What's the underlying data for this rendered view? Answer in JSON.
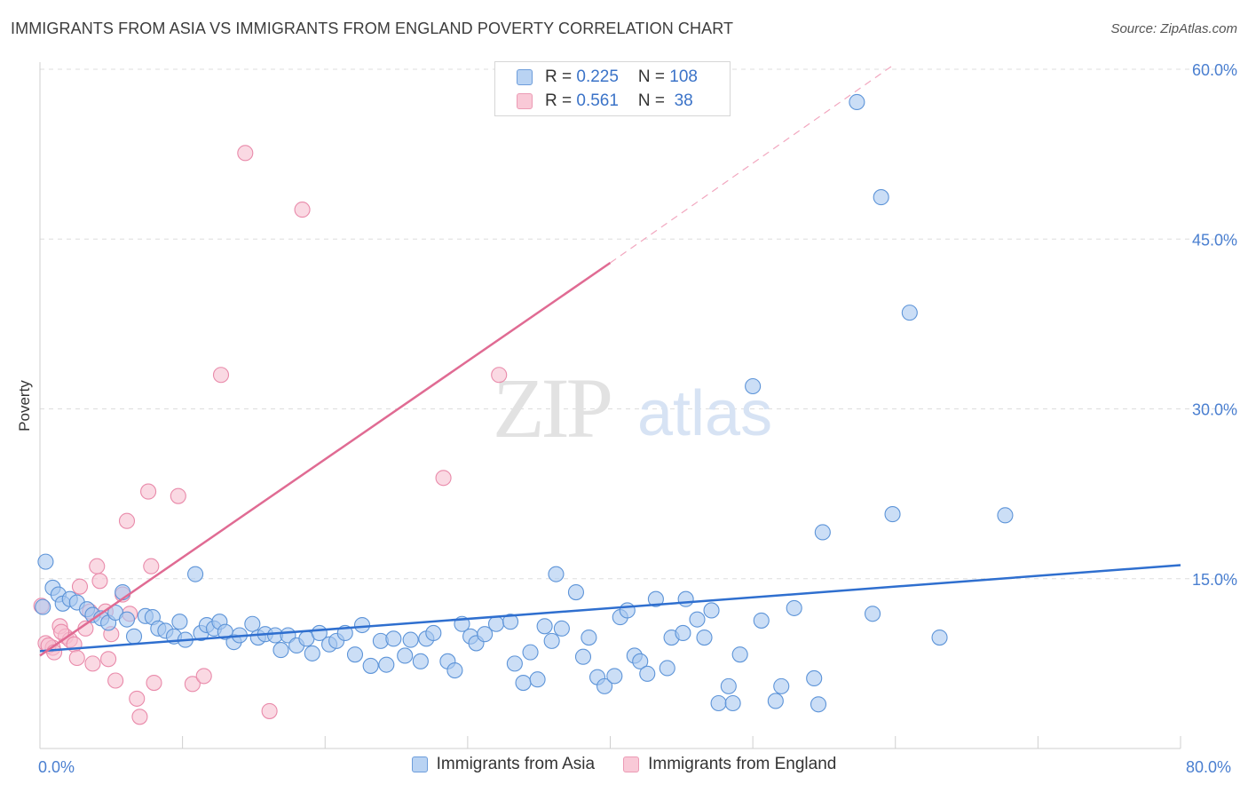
{
  "header": {
    "title": "IMMIGRANTS FROM ASIA VS IMMIGRANTS FROM ENGLAND POVERTY CORRELATION CHART",
    "source": "Source: ZipAtlas.com"
  },
  "watermark": {
    "zip": "ZIP",
    "atlas": "atlas"
  },
  "legend": {
    "asia": {
      "r_label": "R = ",
      "r_value": "0.225",
      "n_label": "N = ",
      "n_value": "108",
      "color": "#a9c8f0"
    },
    "england": {
      "r_label": "R = ",
      "r_value": "0.561",
      "n_label": "N = ",
      "n_value": " 38",
      "color": "#f5b8cc"
    }
  },
  "bottom_legend": {
    "asia": "Immigrants from Asia",
    "england": "Immigrants from England"
  },
  "colors": {
    "asia_fill": "#a9c8f0",
    "asia_stroke": "#5d94d8",
    "asia_line": "#2f6fcf",
    "england_fill": "#f7bfd0",
    "england_stroke": "#e98aaa",
    "england_line": "#e06b93",
    "grid": "#dddddd",
    "tick_text": "#4a7fd0"
  },
  "chart_data": {
    "type": "scatter",
    "title": "IMMIGRANTS FROM ASIA VS IMMIGRANTS FROM ENGLAND POVERTY CORRELATION CHART",
    "xlabel": "",
    "ylabel": "Poverty",
    "xlim": [
      0,
      80
    ],
    "ylim": [
      0,
      60
    ],
    "x_ticks": [
      "0.0%",
      "80.0%"
    ],
    "y_ticks": [
      {
        "value": 15,
        "label": "15.0%"
      },
      {
        "value": 30,
        "label": "30.0%"
      },
      {
        "value": 45,
        "label": "45.0%"
      },
      {
        "value": 60,
        "label": "60.0%"
      }
    ],
    "series": [
      {
        "name": "Immigrants from Asia",
        "R": 0.225,
        "N": 108,
        "trend": {
          "x": [
            0,
            80
          ],
          "y": [
            8.6,
            16.2
          ],
          "dashed": false
        },
        "points": [
          [
            0.4,
            16.5
          ],
          [
            0.9,
            14.2
          ],
          [
            1.3,
            13.6
          ],
          [
            1.6,
            12.8
          ],
          [
            2.1,
            13.2
          ],
          [
            2.6,
            12.9
          ],
          [
            3.3,
            12.3
          ],
          [
            3.7,
            11.8
          ],
          [
            4.3,
            11.5
          ],
          [
            4.8,
            11.1
          ],
          [
            5.3,
            12.0
          ],
          [
            5.8,
            13.8
          ],
          [
            6.1,
            11.4
          ],
          [
            6.6,
            9.9
          ],
          [
            7.4,
            11.7
          ],
          [
            7.9,
            11.6
          ],
          [
            8.3,
            10.6
          ],
          [
            8.8,
            10.4
          ],
          [
            9.4,
            9.9
          ],
          [
            9.8,
            11.2
          ],
          [
            10.2,
            9.6
          ],
          [
            10.9,
            15.4
          ],
          [
            11.3,
            10.2
          ],
          [
            11.7,
            10.9
          ],
          [
            12.2,
            10.6
          ],
          [
            12.6,
            11.2
          ],
          [
            13.0,
            10.3
          ],
          [
            13.6,
            9.4
          ],
          [
            14.0,
            10.0
          ],
          [
            14.9,
            11.0
          ],
          [
            15.3,
            9.8
          ],
          [
            15.8,
            10.1
          ],
          [
            16.5,
            10.0
          ],
          [
            16.9,
            8.7
          ],
          [
            17.4,
            10.0
          ],
          [
            18.0,
            9.1
          ],
          [
            18.7,
            9.7
          ],
          [
            19.1,
            8.4
          ],
          [
            19.6,
            10.2
          ],
          [
            20.3,
            9.2
          ],
          [
            20.8,
            9.5
          ],
          [
            21.4,
            10.2
          ],
          [
            22.1,
            8.3
          ],
          [
            22.6,
            10.9
          ],
          [
            23.2,
            7.3
          ],
          [
            23.9,
            9.5
          ],
          [
            24.3,
            7.4
          ],
          [
            24.8,
            9.7
          ],
          [
            25.6,
            8.2
          ],
          [
            26.0,
            9.6
          ],
          [
            26.7,
            7.7
          ],
          [
            27.1,
            9.7
          ],
          [
            27.6,
            10.2
          ],
          [
            28.6,
            7.7
          ],
          [
            29.1,
            6.9
          ],
          [
            29.6,
            11.0
          ],
          [
            30.2,
            9.9
          ],
          [
            30.6,
            9.3
          ],
          [
            31.2,
            10.1
          ],
          [
            32.0,
            11.0
          ],
          [
            33.0,
            11.2
          ],
          [
            33.3,
            7.5
          ],
          [
            33.9,
            5.8
          ],
          [
            34.4,
            8.5
          ],
          [
            34.9,
            6.1
          ],
          [
            35.4,
            10.8
          ],
          [
            35.9,
            9.5
          ],
          [
            36.2,
            15.4
          ],
          [
            36.6,
            10.6
          ],
          [
            37.6,
            13.8
          ],
          [
            38.1,
            8.1
          ],
          [
            38.5,
            9.8
          ],
          [
            39.1,
            6.3
          ],
          [
            39.6,
            5.5
          ],
          [
            40.3,
            6.4
          ],
          [
            40.7,
            11.6
          ],
          [
            41.2,
            12.2
          ],
          [
            41.7,
            8.2
          ],
          [
            42.1,
            7.7
          ],
          [
            42.6,
            6.6
          ],
          [
            43.2,
            13.2
          ],
          [
            44.0,
            7.1
          ],
          [
            44.3,
            9.8
          ],
          [
            45.3,
            13.2
          ],
          [
            45.1,
            10.2
          ],
          [
            46.1,
            11.4
          ],
          [
            46.6,
            9.8
          ],
          [
            47.1,
            12.2
          ],
          [
            47.6,
            4.0
          ],
          [
            48.3,
            5.5
          ],
          [
            48.6,
            4.0
          ],
          [
            49.1,
            8.3
          ],
          [
            50.0,
            32.0
          ],
          [
            50.6,
            11.3
          ],
          [
            51.6,
            4.2
          ],
          [
            52.0,
            5.5
          ],
          [
            52.9,
            12.4
          ],
          [
            54.3,
            6.2
          ],
          [
            54.6,
            3.9
          ],
          [
            54.9,
            19.1
          ],
          [
            57.3,
            57.1
          ],
          [
            58.4,
            11.9
          ],
          [
            59.8,
            20.7
          ],
          [
            59.0,
            48.7
          ],
          [
            61.0,
            38.5
          ],
          [
            63.1,
            9.8
          ],
          [
            67.7,
            20.6
          ],
          [
            0.2,
            12.5
          ]
        ]
      },
      {
        "name": "Immigrants from England",
        "R": 0.561,
        "N": 38,
        "trend": {
          "x": [
            0,
            40
          ],
          "y": [
            8.2,
            42.9
          ],
          "dashed": false
        },
        "trend_extension": {
          "x": [
            40,
            60
          ],
          "y": [
            42.9,
            60.5
          ],
          "dashed": true
        },
        "points": [
          [
            0.1,
            12.6
          ],
          [
            0.4,
            9.3
          ],
          [
            0.9,
            8.9
          ],
          [
            1.4,
            10.8
          ],
          [
            1.8,
            9.9
          ],
          [
            2.1,
            9.6
          ],
          [
            2.4,
            9.2
          ],
          [
            2.6,
            8.0
          ],
          [
            2.8,
            14.3
          ],
          [
            3.2,
            10.6
          ],
          [
            3.5,
            12.1
          ],
          [
            3.7,
            7.5
          ],
          [
            4.0,
            16.1
          ],
          [
            4.2,
            14.8
          ],
          [
            4.6,
            12.1
          ],
          [
            4.8,
            7.9
          ],
          [
            5.0,
            10.1
          ],
          [
            5.3,
            6.0
          ],
          [
            5.8,
            13.6
          ],
          [
            6.1,
            20.1
          ],
          [
            6.3,
            11.9
          ],
          [
            6.8,
            4.4
          ],
          [
            7.0,
            2.8
          ],
          [
            7.6,
            22.7
          ],
          [
            7.8,
            16.1
          ],
          [
            8.0,
            5.8
          ],
          [
            9.7,
            22.3
          ],
          [
            10.7,
            5.7
          ],
          [
            11.5,
            6.4
          ],
          [
            12.7,
            33.0
          ],
          [
            14.4,
            52.6
          ],
          [
            16.1,
            3.3
          ],
          [
            18.4,
            47.6
          ],
          [
            28.3,
            23.9
          ],
          [
            32.2,
            33.0
          ],
          [
            0.6,
            9.1
          ],
          [
            1.0,
            8.5
          ],
          [
            1.5,
            10.3
          ]
        ]
      }
    ]
  }
}
